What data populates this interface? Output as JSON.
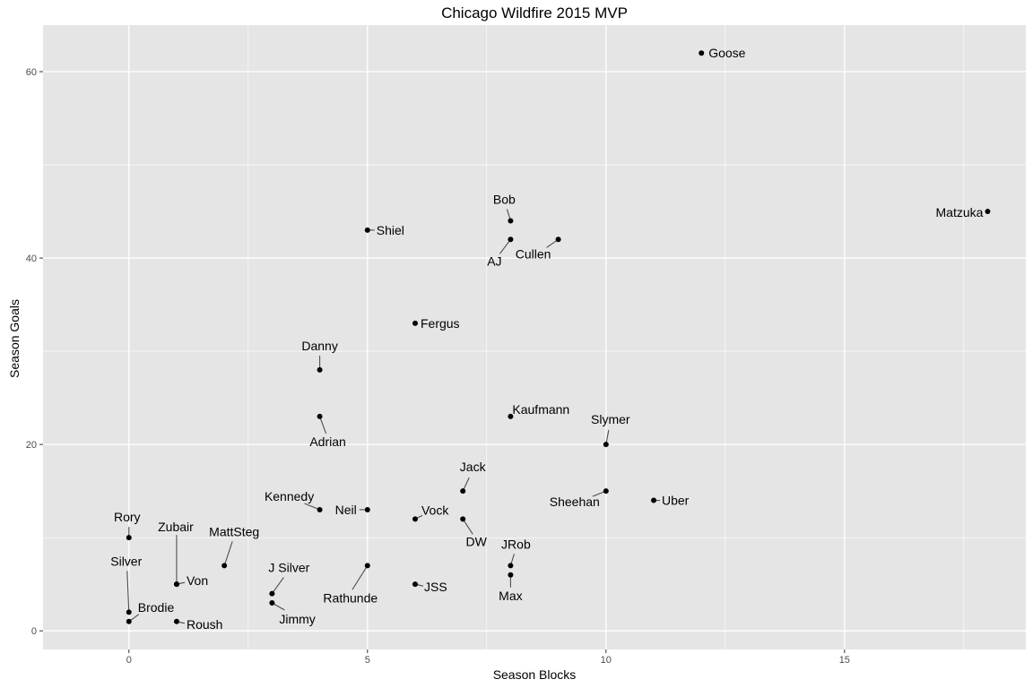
{
  "chart_data": {
    "type": "scatter",
    "title": "Chicago Wildfire 2015 MVP",
    "xlabel": "Season Blocks",
    "ylabel": "Season Goals",
    "xlim": [
      -1.8,
      18.8
    ],
    "ylim": [
      -2,
      65
    ],
    "x_ticks": [
      0,
      5,
      10,
      15
    ],
    "y_ticks": [
      0,
      20,
      40,
      60
    ],
    "grid": true,
    "legend": "none",
    "colors": {
      "panel": "#e5e5e5",
      "grid_major": "#ffffff",
      "point": "#000000",
      "text": "#000000",
      "tick": "#4d4d4d"
    },
    "points": [
      {
        "name": "Goose",
        "x": 12,
        "y": 62
      },
      {
        "name": "Matzuka",
        "x": 18,
        "y": 45
      },
      {
        "name": "Bob",
        "x": 8,
        "y": 44
      },
      {
        "name": "Shiel",
        "x": 5,
        "y": 43
      },
      {
        "name": "AJ",
        "x": 8,
        "y": 42
      },
      {
        "name": "Cullen",
        "x": 9,
        "y": 42
      },
      {
        "name": "Fergus",
        "x": 6,
        "y": 33
      },
      {
        "name": "Danny",
        "x": 4,
        "y": 28
      },
      {
        "name": "Adrian",
        "x": 4,
        "y": 23
      },
      {
        "name": "Kaufmann",
        "x": 8,
        "y": 23
      },
      {
        "name": "Slymer",
        "x": 10,
        "y": 20
      },
      {
        "name": "Jack",
        "x": 7,
        "y": 15
      },
      {
        "name": "Sheehan",
        "x": 10,
        "y": 15
      },
      {
        "name": "Uber",
        "x": 11,
        "y": 14
      },
      {
        "name": "Kennedy",
        "x": 4,
        "y": 13
      },
      {
        "name": "Neil",
        "x": 5,
        "y": 13
      },
      {
        "name": "Vock",
        "x": 6,
        "y": 12
      },
      {
        "name": "DW",
        "x": 7,
        "y": 12
      },
      {
        "name": "Rory",
        "x": 0,
        "y": 10
      },
      {
        "name": "MattSteg",
        "x": 2,
        "y": 7
      },
      {
        "name": "Rathunde",
        "x": 5,
        "y": 7
      },
      {
        "name": "JRob",
        "x": 8,
        "y": 7
      },
      {
        "name": "Max",
        "x": 8,
        "y": 6
      },
      {
        "name": "Zubair",
        "x": 1,
        "y": 5
      },
      {
        "name": "Von",
        "x": 1,
        "y": 5
      },
      {
        "name": "JSS",
        "x": 6,
        "y": 5
      },
      {
        "name": "J Silver",
        "x": 3,
        "y": 4
      },
      {
        "name": "Jimmy",
        "x": 3,
        "y": 3
      },
      {
        "name": "Silver",
        "x": 0,
        "y": 2
      },
      {
        "name": "Brodie",
        "x": 0,
        "y": 1
      },
      {
        "name": "Roush",
        "x": 1,
        "y": 1
      }
    ]
  }
}
